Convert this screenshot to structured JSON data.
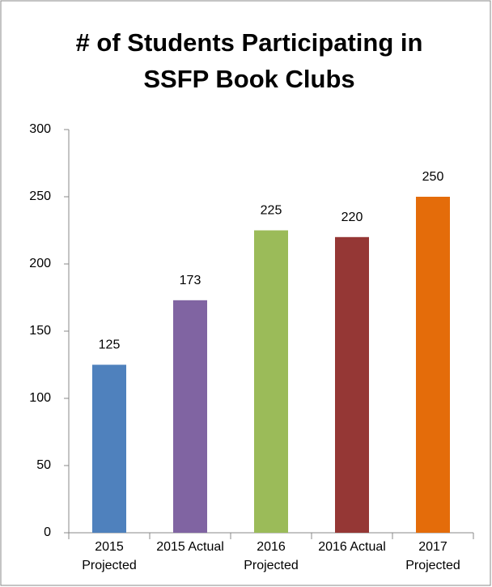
{
  "chart_data": {
    "type": "bar",
    "title": "# of Students Participating in SSFP Book Clubs",
    "categories": [
      "2015 Projected",
      "2015 Actual",
      "2016 Projected",
      "2016 Actual",
      "2017 Projected"
    ],
    "values": [
      125,
      173,
      225,
      220,
      250
    ],
    "colors": [
      "#4f81bd",
      "#8064a2",
      "#9bbb59",
      "#953735",
      "#e46c0a"
    ],
    "ylim": [
      0,
      300
    ],
    "yticks": [
      0,
      50,
      100,
      150,
      200,
      250,
      300
    ],
    "grid": false
  }
}
